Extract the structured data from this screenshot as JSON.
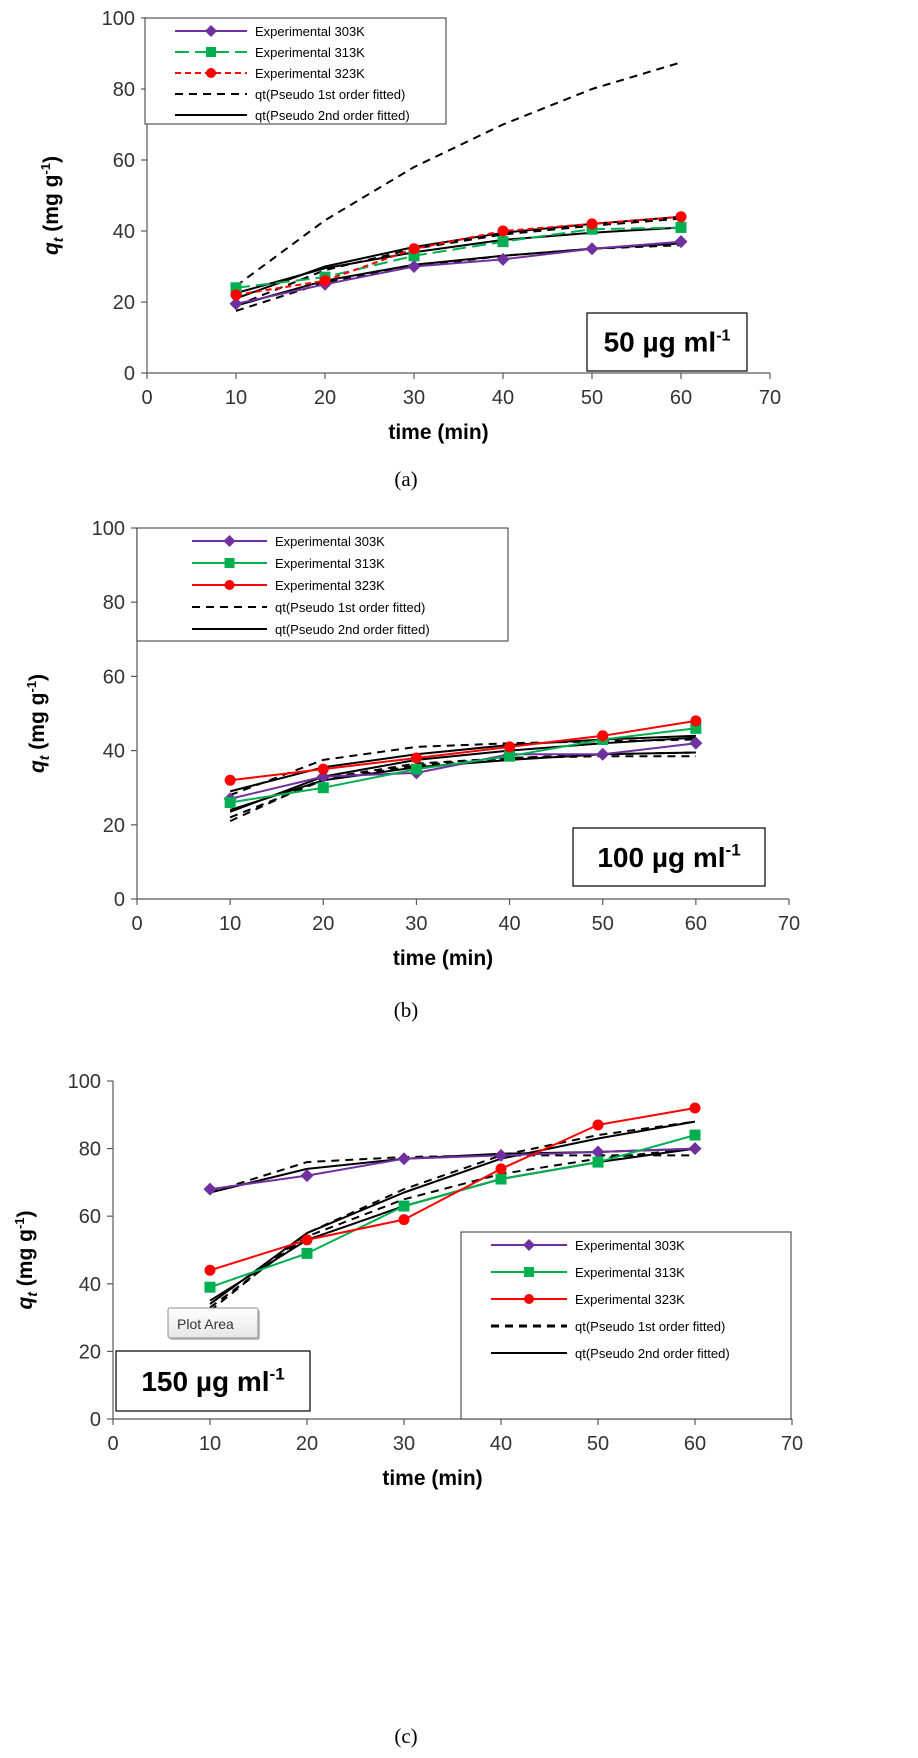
{
  "figure": {
    "colors": {
      "s303": "#7030A0",
      "s313": "#00B050",
      "s323": "#FF0000",
      "fit": "#000000",
      "axis": "#595959"
    },
    "tooltip": {
      "label": "Plot Area"
    }
  },
  "chart_data": [
    {
      "id": "a",
      "type": "line",
      "caption": "(a)",
      "annotation": "50 µg ml",
      "annotation_sup": "-1",
      "xlabel": "time (min)",
      "ylabel_main": "q",
      "ylabel_sub": "t",
      "ylabel_units": " (mg g",
      "ylabel_units_sup": "-1",
      "ylabel_close": ")",
      "xlim": [
        0,
        70
      ],
      "ylim": [
        0,
        100
      ],
      "xticks": [
        0,
        10,
        20,
        30,
        40,
        50,
        60,
        70
      ],
      "yticks": [
        0,
        20,
        40,
        60,
        80,
        100
      ],
      "legend_position": "top-left",
      "legend": [
        {
          "label": "Experimental 303K",
          "style": "s303-marker"
        },
        {
          "label": "Experimental 313K",
          "style": "s313-marker"
        },
        {
          "label": "Experimental 323K",
          "style": "s323-marker"
        },
        {
          "label": "qt(Pseudo 1st order fitted)",
          "style": "fit1"
        },
        {
          "label": "qt(Pseudo 2nd order fitted)",
          "style": "fit2"
        }
      ],
      "x": [
        10,
        20,
        30,
        40,
        50,
        60
      ],
      "series": [
        {
          "name": "Experimental 303K",
          "style": "s303",
          "values": [
            19.5,
            25,
            30,
            32,
            35,
            37
          ]
        },
        {
          "name": "Experimental 313K",
          "style": "s313",
          "values": [
            24,
            27,
            33,
            37,
            40.5,
            41
          ]
        },
        {
          "name": "Experimental 323K",
          "style": "s323",
          "values": [
            22,
            26,
            35,
            40,
            42,
            44
          ]
        },
        {
          "name": "qt(Pseudo 1st order fitted) 303K",
          "style": "fit1",
          "values": [
            17.5,
            25.5,
            30,
            33,
            35,
            36
          ]
        },
        {
          "name": "qt(Pseudo 1st order fitted) 313K",
          "style": "fit1",
          "values": [
            24.5,
            43,
            58,
            70,
            80,
            87.5
          ]
        },
        {
          "name": "qt(Pseudo 1st order fitted) 323K",
          "style": "fit1",
          "values": [
            19,
            29,
            35,
            39,
            41.5,
            43.5
          ]
        },
        {
          "name": "qt(Pseudo 2nd order fitted) 303K",
          "style": "fit2",
          "values": [
            19,
            26,
            30.5,
            33,
            35,
            36.5
          ]
        },
        {
          "name": "qt(Pseudo 2nd order fitted) 313K",
          "style": "fit2",
          "values": [
            22.5,
            29.5,
            34,
            37.5,
            39.5,
            41
          ]
        },
        {
          "name": "qt(Pseudo 2nd order fitted) 323K",
          "style": "fit2",
          "values": [
            21,
            30,
            35.5,
            39.5,
            42,
            44
          ]
        }
      ]
    },
    {
      "id": "b",
      "type": "line",
      "caption": "(b)",
      "annotation": "100 µg ml",
      "annotation_sup": "-1",
      "xlabel": "time (min)",
      "ylabel_main": "q",
      "ylabel_sub": "t",
      "ylabel_units": " (mg g",
      "ylabel_units_sup": "-1",
      "ylabel_close": ")",
      "xlim": [
        0,
        70
      ],
      "ylim": [
        0,
        100
      ],
      "xticks": [
        0,
        10,
        20,
        30,
        40,
        50,
        60,
        70
      ],
      "yticks": [
        0,
        20,
        40,
        60,
        80,
        100
      ],
      "legend_position": "top-left",
      "legend": [
        {
          "label": "Experimental 303K",
          "style": "s303-marker"
        },
        {
          "label": "Experimental 313K",
          "style": "s313-marker"
        },
        {
          "label": "Experimental 323K",
          "style": "s323-marker"
        },
        {
          "label": "qt(Pseudo 1st order fitted)",
          "style": "fit1"
        },
        {
          "label": "qt(Pseudo 2nd order fitted)",
          "style": "fit2"
        }
      ],
      "x": [
        10,
        20,
        30,
        40,
        50,
        60
      ],
      "series": [
        {
          "name": "Experimental 303K",
          "style": "s303",
          "values": [
            27,
            33,
            34,
            39,
            39,
            42
          ]
        },
        {
          "name": "Experimental 313K",
          "style": "s313",
          "values": [
            26,
            30,
            35,
            38.5,
            43,
            46
          ]
        },
        {
          "name": "Experimental 323K",
          "style": "s323",
          "values": [
            32,
            35,
            38,
            41,
            44,
            48
          ]
        },
        {
          "name": "qt(Pseudo 1st order fitted) 303K",
          "style": "fit1",
          "values": [
            21,
            32.5,
            36.5,
            38,
            38.5,
            38.5
          ]
        },
        {
          "name": "qt(Pseudo 1st order fitted) 313K",
          "style": "fit1",
          "values": [
            22,
            32,
            36,
            38,
            39,
            39.5
          ]
        },
        {
          "name": "qt(Pseudo 1st order fitted) 323K",
          "style": "fit1",
          "values": [
            28,
            37.5,
            41,
            42,
            42.5,
            43
          ]
        },
        {
          "name": "qt(Pseudo 2nd order fitted) 303K",
          "style": "fit2",
          "values": [
            24,
            32,
            35.5,
            37.5,
            39,
            39.5
          ]
        },
        {
          "name": "qt(Pseudo 2nd order fitted) 313K",
          "style": "fit2",
          "values": [
            23.5,
            33,
            37.5,
            40,
            42,
            43.5
          ]
        },
        {
          "name": "qt(Pseudo 2nd order fitted) 323K",
          "style": "fit2",
          "values": [
            29,
            35.5,
            39,
            41.5,
            43,
            44
          ]
        }
      ]
    },
    {
      "id": "c",
      "type": "line",
      "caption": "(c)",
      "annotation": "150 µg ml",
      "annotation_sup": "-1",
      "xlabel": "time (min)",
      "ylabel_main": "q",
      "ylabel_sub": "t",
      "ylabel_units": " (mg g",
      "ylabel_units_sup": "-1",
      "ylabel_close": ")",
      "xlim": [
        0,
        70
      ],
      "ylim": [
        0,
        100
      ],
      "xticks": [
        0,
        10,
        20,
        30,
        40,
        50,
        60,
        70
      ],
      "yticks": [
        0,
        20,
        40,
        60,
        80,
        100
      ],
      "legend_position": "bottom-right",
      "legend": [
        {
          "label": "Experimental 303K",
          "style": "s303-marker"
        },
        {
          "label": "Experimental 313K",
          "style": "s313-marker"
        },
        {
          "label": "Experimental 323K",
          "style": "s323-marker"
        },
        {
          "label": "qt(Pseudo 1st order fitted)",
          "style": "fit1"
        },
        {
          "label": "qt(Pseudo 2nd order fitted)",
          "style": "fit2"
        }
      ],
      "x": [
        10,
        20,
        30,
        40,
        50,
        60
      ],
      "series": [
        {
          "name": "Experimental 303K",
          "style": "s303",
          "values": [
            68,
            72,
            77,
            78,
            79,
            80
          ]
        },
        {
          "name": "Experimental 313K",
          "style": "s313",
          "values": [
            39,
            49,
            63,
            71,
            76,
            84
          ]
        },
        {
          "name": "Experimental 323K",
          "style": "s323",
          "values": [
            44,
            53,
            59,
            74,
            87,
            92
          ]
        },
        {
          "name": "qt(Pseudo 1st order fitted) 303K",
          "style": "fit1",
          "values": [
            67,
            76,
            77.5,
            78,
            78,
            78
          ]
        },
        {
          "name": "qt(Pseudo 1st order fitted) 313K",
          "style": "fit1",
          "values": [
            33,
            54,
            65,
            72.5,
            77,
            80
          ]
        },
        {
          "name": "qt(Pseudo 1st order fitted) 323K",
          "style": "fit1",
          "values": [
            32,
            55,
            68,
            78,
            84,
            88
          ]
        },
        {
          "name": "qt(Pseudo 2nd order fitted) 303K",
          "style": "fit2",
          "values": [
            67,
            74,
            77,
            78.5,
            79,
            80
          ]
        },
        {
          "name": "qt(Pseudo 2nd order fitted) 313K",
          "style": "fit2",
          "values": [
            35,
            53,
            63,
            71,
            76,
            80
          ]
        },
        {
          "name": "qt(Pseudo 2nd order fitted) 323K",
          "style": "fit2",
          "values": [
            34,
            55,
            67,
            77,
            83,
            88
          ]
        }
      ]
    }
  ]
}
